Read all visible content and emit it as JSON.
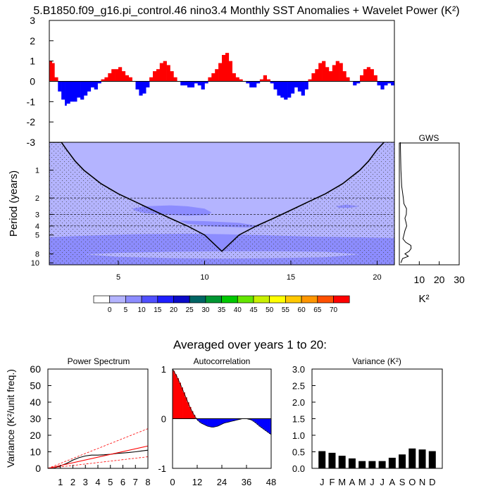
{
  "figure": {
    "title": "5.B1850.f09_g16.pi_control.46 nino3.4 Monthly SST Anomalies + Wavelet Power (K²)",
    "subtitle": "Averaged over years 1 to 20:",
    "colors": {
      "positive": "#ff0000",
      "negative": "#0000ff"
    }
  },
  "chart_data": [
    {
      "type": "area",
      "name": "sst-anomalies",
      "title": "",
      "ylim": [
        -3,
        3
      ],
      "yticks": [
        "3",
        "2",
        "1",
        "0",
        "-1",
        "-2",
        "-3"
      ],
      "xlim": [
        1,
        21
      ],
      "x_units": "years",
      "x": [
        1.0,
        1.15,
        1.3,
        1.5,
        1.7,
        1.9,
        2.0,
        2.2,
        2.4,
        2.6,
        2.8,
        3.0,
        3.2,
        3.4,
        3.6,
        3.8,
        4.0,
        4.2,
        4.4,
        4.6,
        4.8,
        5.0,
        5.2,
        5.4,
        5.6,
        5.8,
        6.0,
        6.2,
        6.4,
        6.6,
        6.8,
        7.0,
        7.2,
        7.4,
        7.6,
        7.8,
        8.0,
        8.2,
        8.4,
        8.6,
        8.8,
        9.0,
        9.2,
        9.4,
        9.6,
        9.8,
        10.0,
        10.2,
        10.4,
        10.6,
        10.8,
        11.0,
        11.2,
        11.4,
        11.6,
        11.8,
        12.0,
        12.2,
        12.4,
        12.6,
        12.8,
        13.0,
        13.2,
        13.4,
        13.6,
        13.8,
        14.0,
        14.2,
        14.4,
        14.6,
        14.8,
        15.0,
        15.2,
        15.4,
        15.6,
        15.8,
        16.0,
        16.2,
        16.4,
        16.6,
        16.8,
        17.0,
        17.2,
        17.4,
        17.6,
        17.8,
        18.0,
        18.2,
        18.4,
        18.6,
        18.8,
        19.0,
        19.2,
        19.4,
        19.6,
        19.8,
        20.0,
        20.2,
        20.4,
        20.6,
        20.8,
        21.0
      ],
      "values": [
        1.0,
        0.9,
        0.2,
        -0.5,
        -0.9,
        -1.2,
        -1.1,
        -1.0,
        -1.0,
        -0.8,
        -0.9,
        -0.7,
        -0.5,
        -0.3,
        -0.4,
        -0.1,
        0.1,
        0.2,
        0.4,
        0.6,
        0.6,
        0.7,
        0.5,
        0.3,
        0.2,
        0.0,
        -0.4,
        -0.7,
        -0.6,
        -0.3,
        0.2,
        0.5,
        0.6,
        0.9,
        1.0,
        0.8,
        0.5,
        0.2,
        0.0,
        -0.2,
        -0.2,
        -0.3,
        -0.3,
        -0.1,
        -0.2,
        -0.4,
        -0.1,
        0.2,
        0.4,
        0.6,
        0.9,
        1.3,
        1.4,
        1.0,
        0.4,
        0.2,
        0.1,
        0.0,
        -0.1,
        -0.3,
        -0.3,
        -0.1,
        0.1,
        0.3,
        0.1,
        -0.1,
        -0.4,
        -0.7,
        -0.8,
        -0.9,
        -0.8,
        -0.6,
        -0.3,
        -0.5,
        -0.7,
        -0.4,
        0.1,
        0.4,
        0.6,
        0.9,
        1.0,
        0.7,
        0.5,
        0.8,
        1.0,
        0.9,
        0.5,
        0.2,
        0.0,
        -0.2,
        -0.1,
        0.3,
        0.6,
        0.7,
        0.6,
        0.3,
        -0.2,
        -0.4,
        -0.2,
        -0.1,
        -0.2,
        -0.3
      ]
    },
    {
      "type": "heatmap",
      "name": "wavelet-power",
      "ylabel": "Period (years)",
      "y_log": true,
      "ylim": [
        0.5,
        10.5
      ],
      "yticks": [
        "1",
        "2",
        "3",
        "4",
        "5",
        "8",
        "10"
      ],
      "xlim": [
        1,
        21
      ],
      "xticks": [
        "5",
        "10",
        "15",
        "20"
      ],
      "cone_of_influence": {
        "x": [
          1.0,
          1.7,
          2.0,
          2.5,
          3.0,
          4.0,
          5.0,
          6.0,
          7.0,
          8.0,
          9.0,
          10.0,
          11.0,
          12.0,
          13.0,
          14.0,
          15.0,
          16.0,
          17.0,
          18.0,
          19.0,
          19.5,
          20.0,
          20.4
        ],
        "period": [
          0.5,
          0.5,
          0.6,
          0.8,
          1.0,
          1.4,
          1.8,
          2.2,
          2.7,
          3.3,
          4.0,
          5.0,
          7.5,
          5.0,
          4.0,
          3.3,
          2.7,
          2.2,
          1.8,
          1.4,
          1.0,
          0.8,
          0.6,
          0.5
        ]
      },
      "regions": [
        {
          "level": "5-10",
          "x": [
            5.8,
            6.5,
            8.0,
            9.0,
            10.0,
            10.4,
            10.2,
            9.0,
            7.5,
            6.5,
            6.0
          ],
          "period": [
            2.6,
            2.45,
            2.4,
            2.45,
            2.6,
            2.85,
            3.05,
            3.1,
            3.0,
            2.9,
            2.75
          ]
        },
        {
          "level": "5-10",
          "x": [
            8.5,
            10.0,
            12.0,
            13.3,
            12.5,
            10.5,
            9.0
          ],
          "period": [
            3.5,
            3.55,
            3.7,
            4.05,
            4.15,
            4.05,
            3.8
          ]
        },
        {
          "level": "5-10",
          "x": [
            17.6,
            18.2,
            19.0,
            18.4,
            17.8
          ],
          "period": [
            2.45,
            2.35,
            2.45,
            2.55,
            2.55
          ]
        },
        {
          "level": "5-10",
          "x": [
            1.0,
            3.0,
            6.0,
            9.0,
            11.0,
            13.0,
            16.0,
            19.0,
            21.0,
            21.0,
            1.0
          ],
          "period": [
            5.3,
            5.1,
            4.9,
            4.85,
            4.9,
            5.0,
            5.2,
            5.3,
            5.4,
            10.5,
            10.5
          ]
        },
        {
          "level": "0-5",
          "x": [
            3.0,
            5.0,
            8.0,
            11.0,
            14.0,
            17.0,
            19.0,
            17.0,
            14.0,
            11.0,
            8.0,
            5.0
          ],
          "period": [
            8.1,
            7.8,
            7.6,
            7.5,
            7.5,
            7.6,
            8.1,
            8.7,
            8.9,
            9.0,
            8.9,
            8.6
          ]
        }
      ],
      "dashed_period_lines": [
        2,
        3,
        4
      ]
    },
    {
      "type": "line",
      "name": "global-wavelet-spectrum",
      "title": "GWS",
      "xlabel": "K²",
      "xlim": [
        0,
        30
      ],
      "xticks": [
        "10",
        "20",
        "30"
      ],
      "period": [
        0.5,
        1.0,
        1.5,
        2.0,
        2.3,
        2.6,
        3.0,
        3.3,
        3.7,
        4.0,
        4.5,
        5.0,
        5.5,
        6.0,
        6.5,
        7.0,
        7.5,
        8.0,
        8.5,
        9.0,
        10.0
      ],
      "power": [
        0.5,
        0.8,
        1.2,
        2.0,
        2.3,
        3.6,
        3.5,
        2.8,
        3.4,
        3.7,
        2.8,
        2.3,
        1.8,
        3.2,
        5.8,
        5.9,
        4.9,
        2.8,
        4.5,
        1.6,
        0.8
      ]
    },
    {
      "type": "line",
      "name": "power-spectrum",
      "title": "Power Spectrum",
      "ylabel": "Variance (K²/unit freq.)",
      "ylim": [
        0,
        60
      ],
      "yticks": [
        "0",
        "10",
        "20",
        "30",
        "40",
        "50",
        "60"
      ],
      "xlim": [
        0,
        8
      ],
      "xticks": [
        "1",
        "2",
        "3",
        "4",
        "5",
        "6",
        "7",
        "8"
      ],
      "series": [
        {
          "x": [
            0,
            0.5,
            1,
            1.5,
            2,
            2.5,
            3,
            3.5,
            4,
            4.5,
            5,
            5.5,
            6,
            6.5,
            7,
            7.5,
            8
          ],
          "values": [
            0,
            0.2,
            1.5,
            3,
            5,
            6.5,
            7.5,
            8,
            8,
            8.2,
            8.5,
            9,
            9.3,
            9.6,
            10,
            10.5,
            11
          ],
          "color": "#000000",
          "style": "solid"
        },
        {
          "x": [
            0,
            8
          ],
          "values": [
            0,
            13.5
          ],
          "color": "#ff0000",
          "style": "solid"
        },
        {
          "x": [
            0,
            8
          ],
          "values": [
            0,
            24
          ],
          "color": "#ff0000",
          "style": "dashed"
        },
        {
          "x": [
            0,
            8
          ],
          "values": [
            0,
            7
          ],
          "color": "#ff0000",
          "style": "dashed"
        }
      ]
    },
    {
      "type": "area",
      "name": "autocorrelation",
      "title": "Autocorrelation",
      "ylim": [
        -1,
        1
      ],
      "yticks": [
        "1",
        "0",
        "-1"
      ],
      "xlim": [
        0,
        48
      ],
      "xticks": [
        "0",
        "12",
        "24",
        "36",
        "48"
      ],
      "x": [
        0,
        1,
        2,
        3,
        4,
        5,
        6,
        7,
        8,
        9,
        10,
        11,
        12,
        13,
        14,
        15,
        16,
        17,
        18,
        19,
        20,
        21,
        22,
        23,
        24,
        25,
        26,
        27,
        28,
        29,
        30,
        31,
        32,
        33,
        34,
        35,
        36,
        37,
        38,
        39,
        40,
        41,
        42,
        43,
        44,
        45,
        46,
        47,
        48
      ],
      "values": [
        1.0,
        0.93,
        0.86,
        0.77,
        0.68,
        0.58,
        0.48,
        0.38,
        0.28,
        0.19,
        0.11,
        0.04,
        -0.02,
        -0.06,
        -0.09,
        -0.11,
        -0.13,
        -0.15,
        -0.16,
        -0.17,
        -0.17,
        -0.16,
        -0.15,
        -0.13,
        -0.11,
        -0.09,
        -0.08,
        -0.07,
        -0.06,
        -0.05,
        -0.04,
        -0.03,
        -0.02,
        -0.01,
        0.0,
        0.0,
        0.0,
        -0.01,
        -0.02,
        -0.04,
        -0.07,
        -0.1,
        -0.14,
        -0.17,
        -0.2,
        -0.23,
        -0.26,
        -0.29,
        -0.32
      ]
    },
    {
      "type": "bar",
      "name": "monthly-variance",
      "title": "Variance (K²)",
      "ylim": [
        0,
        3
      ],
      "yticks": [
        "0.0",
        "0.5",
        "1.0",
        "1.5",
        "2.0",
        "2.5",
        "3.0"
      ],
      "categories": [
        "J",
        "F",
        "M",
        "A",
        "M",
        "J",
        "J",
        "A",
        "S",
        "O",
        "N",
        "D"
      ],
      "values": [
        0.52,
        0.47,
        0.38,
        0.3,
        0.22,
        0.22,
        0.22,
        0.32,
        0.42,
        0.6,
        0.57,
        0.52
      ]
    }
  ],
  "colorbar": {
    "labels": [
      "0",
      "5",
      "10",
      "15",
      "20",
      "25",
      "30",
      "35",
      "40",
      "45",
      "50",
      "55",
      "60",
      "65",
      "70"
    ],
    "colors": [
      "#ffffff",
      "#b4b4ff",
      "#8c8cff",
      "#5050ff",
      "#1e1eff",
      "#0a0ac8",
      "#006464",
      "#009632",
      "#00c800",
      "#64e600",
      "#c8f000",
      "#ffff00",
      "#ffc800",
      "#ff9600",
      "#ff5000",
      "#ff0000"
    ],
    "level_colors": {
      "0-5": "#b4b4ff",
      "5-10": "#8c8cff"
    }
  }
}
